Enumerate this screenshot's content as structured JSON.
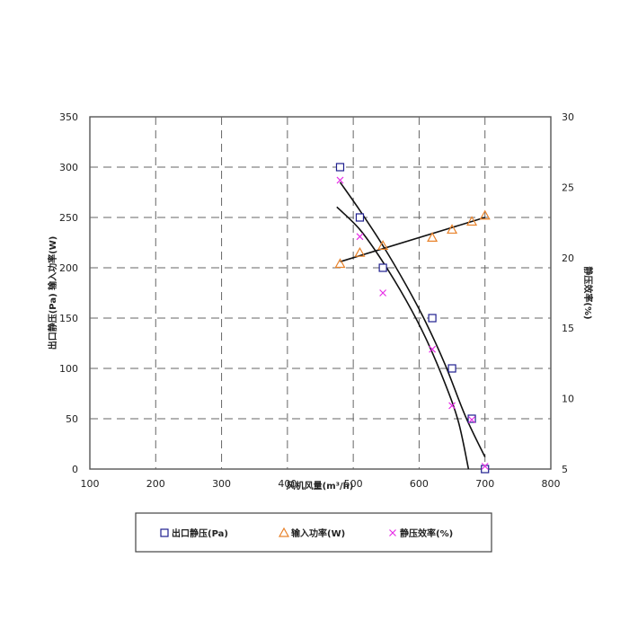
{
  "chart_data": {
    "type": "scatter",
    "xlabel": "风机风量(m³/h)",
    "ylabel_left": "出口静压(Pa) 输入功率(W)",
    "ylabel_right": "静压效率(%)",
    "xlim": [
      100,
      800
    ],
    "x_ticks": [
      100,
      200,
      300,
      400,
      500,
      600,
      700,
      800
    ],
    "ylim_left": [
      0,
      350
    ],
    "y_ticks_left": [
      0,
      50,
      100,
      150,
      200,
      250,
      300,
      350
    ],
    "ylim_right": [
      5,
      30
    ],
    "y_ticks_right": [
      5,
      10,
      15,
      20,
      25,
      30
    ],
    "grid": true,
    "legend_position": "bottom",
    "series": [
      {
        "name": "出口静压(Pa)",
        "marker": "square",
        "color": "#1f1f8f",
        "axis": "left",
        "points": [
          [
            480,
            300
          ],
          [
            510,
            250
          ],
          [
            545,
            200
          ],
          [
            620,
            150
          ],
          [
            650,
            100
          ],
          [
            680,
            50
          ],
          [
            700,
            0
          ]
        ],
        "fit": [
          [
            480,
            285
          ],
          [
            510,
            257
          ],
          [
            545,
            222
          ],
          [
            580,
            183
          ],
          [
            610,
            146
          ],
          [
            640,
            103
          ],
          [
            670,
            53
          ],
          [
            700,
            12
          ]
        ]
      },
      {
        "name": "输入功率(W)",
        "marker": "triangle",
        "color": "#e8822a",
        "axis": "left",
        "points": [
          [
            480,
            204
          ],
          [
            510,
            215
          ],
          [
            545,
            222
          ],
          [
            620,
            230
          ],
          [
            650,
            238
          ],
          [
            680,
            246
          ],
          [
            700,
            252
          ]
        ],
        "fit": [
          [
            480,
            206
          ],
          [
            700,
            250
          ]
        ]
      },
      {
        "name": "静压效率(%)",
        "marker": "x",
        "color": "#e62ee6",
        "axis": "right",
        "points": [
          [
            480,
            25.5
          ],
          [
            510,
            21.5
          ],
          [
            545,
            17.5
          ],
          [
            620,
            13.5
          ],
          [
            650,
            9.5
          ],
          [
            680,
            8.5
          ],
          [
            700,
            5.2
          ]
        ],
        "fit": [
          [
            475,
            23.6
          ],
          [
            510,
            22.0
          ],
          [
            545,
            19.7
          ],
          [
            580,
            17.0
          ],
          [
            610,
            14.3
          ],
          [
            640,
            11.0
          ],
          [
            660,
            8.3
          ],
          [
            675,
            5.0
          ]
        ]
      }
    ]
  }
}
